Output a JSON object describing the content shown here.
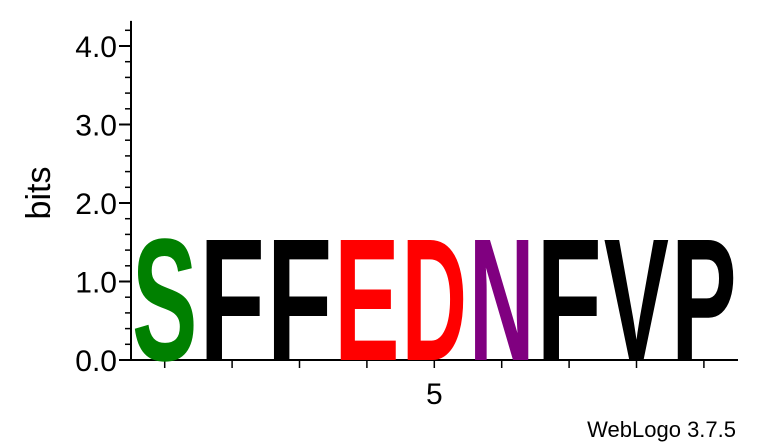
{
  "chart_data": {
    "type": "sequence-logo",
    "ylabel": "bits",
    "ylim": [
      0,
      4.32
    ],
    "yticks": [
      {
        "value": 0,
        "label": "0.0"
      },
      {
        "value": 1,
        "label": "1.0"
      },
      {
        "value": 2,
        "label": "2.0"
      },
      {
        "value": 3,
        "label": "3.0"
      },
      {
        "value": 4,
        "label": "4.0"
      }
    ],
    "positions": [
      1,
      2,
      3,
      4,
      5,
      6,
      7,
      8,
      9
    ],
    "xtick_labels": [
      {
        "position": 5,
        "label": "5"
      }
    ],
    "columns": [
      {
        "position": 1,
        "letter": "S",
        "bits": 1.6,
        "color": "#008000"
      },
      {
        "position": 2,
        "letter": "F",
        "bits": 1.6,
        "color": "#000000"
      },
      {
        "position": 3,
        "letter": "F",
        "bits": 1.6,
        "color": "#000000"
      },
      {
        "position": 4,
        "letter": "E",
        "bits": 1.6,
        "color": "#ff0000"
      },
      {
        "position": 5,
        "letter": "D",
        "bits": 1.6,
        "color": "#ff0000"
      },
      {
        "position": 6,
        "letter": "N",
        "bits": 1.6,
        "color": "#800080"
      },
      {
        "position": 7,
        "letter": "F",
        "bits": 1.6,
        "color": "#000000"
      },
      {
        "position": 8,
        "letter": "V",
        "bits": 1.6,
        "color": "#000000"
      },
      {
        "position": 9,
        "letter": "P",
        "bits": 1.6,
        "color": "#000000"
      }
    ],
    "credit": "WebLogo 3.7.5"
  }
}
